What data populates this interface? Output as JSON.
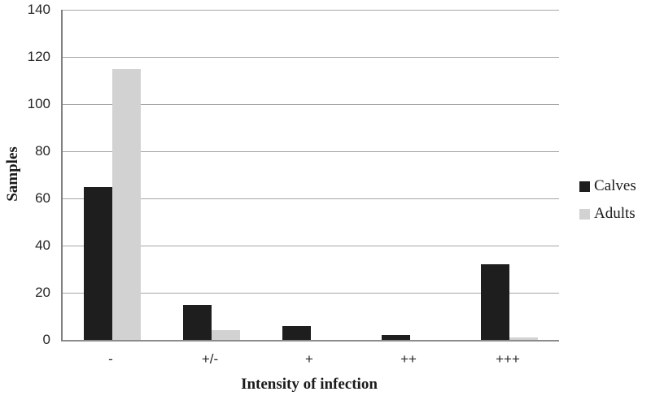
{
  "chart_data": {
    "type": "bar",
    "title": "",
    "xlabel": "Intensity of infection",
    "ylabel": "Samples",
    "categories": [
      "-",
      "+/-",
      "+",
      "++",
      "+++"
    ],
    "series": [
      {
        "name": "Calves",
        "color": "#1e1e1e",
        "values": [
          65,
          15,
          6,
          2,
          32
        ]
      },
      {
        "name": "Adults",
        "color": "#d2d2d2",
        "values": [
          115,
          4,
          0,
          0,
          1
        ]
      }
    ],
    "ylim": [
      0,
      140
    ],
    "yticks": [
      0,
      20,
      40,
      60,
      80,
      100,
      120,
      140
    ],
    "grid": true,
    "legend_position": "right",
    "colors": {
      "gridline": "#a6a6a6",
      "axis": "#808080",
      "text": "#1a1a1a",
      "background": "#ffffff"
    }
  }
}
